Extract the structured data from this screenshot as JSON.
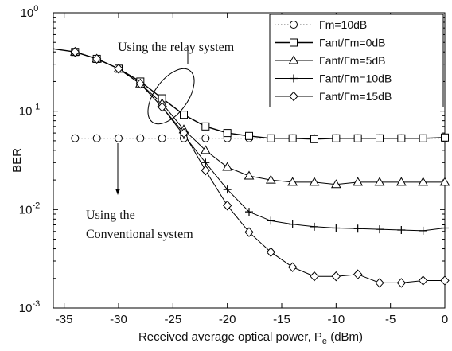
{
  "chart_data": {
    "type": "line",
    "xlabel": "Received average optical power, P",
    "xlabel_sub": "e",
    "xlabel_unit": "(dBm)",
    "ylabel": "BER",
    "xlim": [
      -36,
      0
    ],
    "ylim": [
      0.001,
      1
    ],
    "y_scale": "log",
    "x_ticks": [
      -35,
      -30,
      -25,
      -20,
      -15,
      -10,
      -5,
      0
    ],
    "x_tick_labels": [
      "-35",
      "-30",
      "-25",
      "-20",
      "-15",
      "-10",
      "-5",
      "0"
    ],
    "y_ticks": [
      1,
      0.1,
      0.01,
      0.001
    ],
    "y_tick_labels": [
      {
        "base": "10",
        "exp": "0"
      },
      {
        "base": "10",
        "exp": "-1"
      },
      {
        "base": "10",
        "exp": "-2"
      },
      {
        "base": "10",
        "exp": "-3"
      }
    ],
    "grid": false,
    "legend_position": "top-right",
    "series": [
      {
        "name": "Γm=10dB",
        "marker": "circle",
        "line": "dotted",
        "x": [
          -34,
          -32,
          -30,
          -28,
          -26,
          -24,
          -22,
          -20,
          -18,
          -16,
          -14,
          -12,
          -10,
          -8,
          -6,
          -4,
          -2,
          0
        ],
        "y": [
          0.053,
          0.053,
          0.053,
          0.053,
          0.053,
          0.053,
          0.053,
          0.053,
          0.053,
          0.053,
          0.053,
          0.053,
          0.053,
          0.053,
          0.053,
          0.053,
          0.053,
          0.053
        ]
      },
      {
        "name": "Γant/Γm=0dB",
        "marker": "square",
        "line": "solid",
        "x": [
          -36,
          -34,
          -32,
          -30,
          -28,
          -26,
          -24,
          -22,
          -20,
          -18,
          -16,
          -14,
          -12,
          -10,
          -8,
          -6,
          -4,
          -2,
          0
        ],
        "y": [
          0.43,
          0.4,
          0.34,
          0.27,
          0.2,
          0.135,
          0.092,
          0.07,
          0.06,
          0.056,
          0.053,
          0.053,
          0.052,
          0.053,
          0.053,
          0.053,
          0.053,
          0.053,
          0.054
        ]
      },
      {
        "name": "Γant/Γm=5dB",
        "marker": "triangle",
        "line": "solid",
        "x": [
          -34,
          -32,
          -30,
          -28,
          -26,
          -24,
          -22,
          -20,
          -18,
          -16,
          -14,
          -12,
          -10,
          -8,
          -6,
          -4,
          -2,
          0
        ],
        "y": [
          0.4,
          0.34,
          0.27,
          0.19,
          0.12,
          0.065,
          0.04,
          0.027,
          0.022,
          0.02,
          0.019,
          0.019,
          0.018,
          0.019,
          0.019,
          0.019,
          0.019,
          0.019
        ]
      },
      {
        "name": "Γant/Γm=10dB",
        "marker": "plus",
        "line": "solid",
        "x": [
          -34,
          -32,
          -30,
          -28,
          -26,
          -24,
          -22,
          -20,
          -18,
          -16,
          -14,
          -12,
          -10,
          -8,
          -6,
          -4,
          -2,
          0
        ],
        "y": [
          0.4,
          0.34,
          0.27,
          0.19,
          0.11,
          0.057,
          0.03,
          0.016,
          0.0095,
          0.0077,
          0.0071,
          0.0067,
          0.0065,
          0.0064,
          0.0063,
          0.0062,
          0.0061,
          0.0065
        ]
      },
      {
        "name": "Γant/Γm=15dB",
        "marker": "diamond",
        "line": "solid",
        "x": [
          -34,
          -32,
          -30,
          -28,
          -26,
          -24,
          -22,
          -20,
          -18,
          -16,
          -14,
          -12,
          -10,
          -8,
          -6,
          -4,
          -2,
          0
        ],
        "y": [
          0.4,
          0.34,
          0.27,
          0.19,
          0.11,
          0.06,
          0.025,
          0.011,
          0.0059,
          0.0037,
          0.0026,
          0.0021,
          0.0021,
          0.0022,
          0.0018,
          0.0018,
          0.0019,
          0.0019
        ]
      }
    ],
    "annotations": [
      {
        "text": "Using the relay system"
      },
      {
        "text_lines": [
          "Using the",
          "Conventional  system"
        ]
      }
    ]
  }
}
